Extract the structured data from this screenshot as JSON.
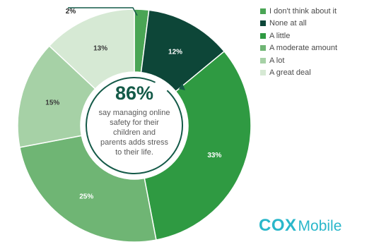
{
  "chart_data": {
    "type": "donut",
    "series": [
      {
        "name": "I don't think about it",
        "value": 2,
        "label": "2%",
        "color": "#4aa555"
      },
      {
        "name": "None at all",
        "value": 12,
        "label": "12%",
        "color": "#0d4638"
      },
      {
        "name": "A little",
        "value": 33,
        "label": "33%",
        "color": "#2f9a42"
      },
      {
        "name": "A moderate amount",
        "value": 25,
        "label": "25%",
        "color": "#6fb574"
      },
      {
        "name": "A lot",
        "value": 15,
        "label": "15%",
        "color": "#a6d1a6"
      },
      {
        "name": "A great deal",
        "value": 13,
        "label": "13%",
        "color": "#d6e9d4"
      }
    ],
    "legend_position": "top-right",
    "center_text": {
      "stat": "86%",
      "lines": [
        "say managing online",
        "safety for their",
        "children and",
        "parents adds stress",
        "to their life."
      ]
    }
  },
  "logo": {
    "cox": "COX",
    "mobile": "Mobile",
    "color": "#2ab7ca"
  }
}
